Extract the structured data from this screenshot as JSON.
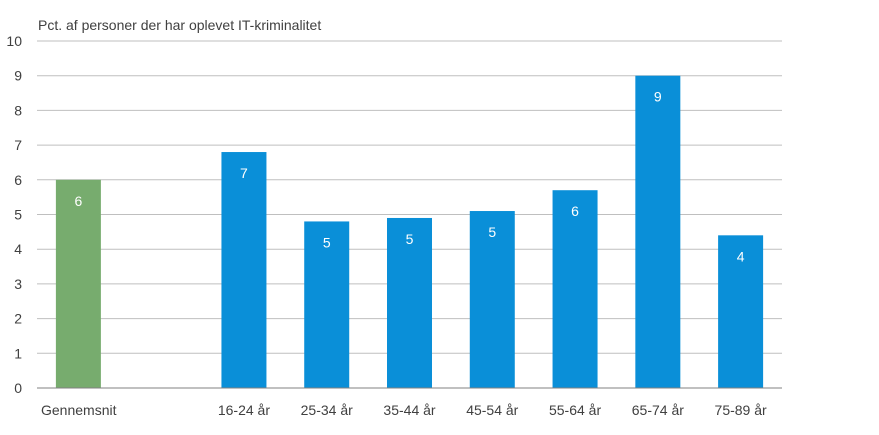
{
  "chart_data": {
    "type": "bar",
    "title": "",
    "xlabel": "",
    "ylabel": "Pct. af personer der har oplevet IT-kriminalitet",
    "ylim": [
      0,
      10
    ],
    "yticks": [
      "0",
      "1",
      "2",
      "3",
      "4",
      "5",
      "6",
      "7",
      "8",
      "9",
      "10"
    ],
    "grid": true,
    "legend": "none",
    "categories": [
      "Gennemsnit",
      "",
      "16-24 år",
      "25-34 år",
      "35-44 år",
      "45-54 år",
      "55-64 år",
      "65-74 år",
      "75-89 år"
    ],
    "values": [
      6.0,
      null,
      6.8,
      4.8,
      4.9,
      5.1,
      5.7,
      9.0,
      4.4
    ],
    "data_labels": [
      "6",
      "",
      "7",
      "5",
      "5",
      "5",
      "6",
      "9",
      "4"
    ],
    "colors": [
      "#77AC6E",
      null,
      "#0A8FD8",
      "#0A8FD8",
      "#0A8FD8",
      "#0A8FD8",
      "#0A8FD8",
      "#0A8FD8",
      "#0A8FD8"
    ],
    "grid_color": "#BFBFBF",
    "axis_color": "#808080"
  }
}
